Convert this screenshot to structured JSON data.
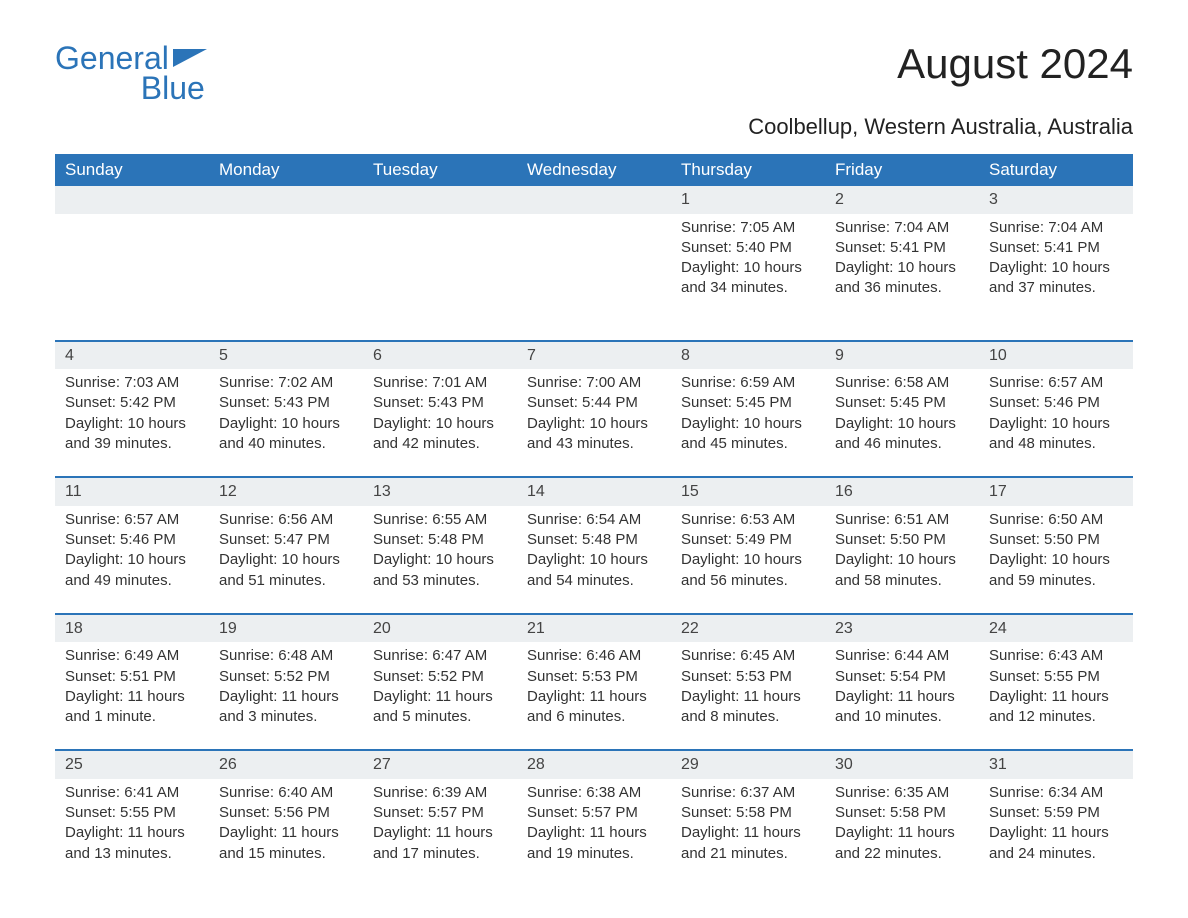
{
  "brand": {
    "text1": "General",
    "text2": "Blue",
    "accent_color": "#2b74b8"
  },
  "title": "August 2024",
  "subtitle": "Coolbellup, Western Australia, Australia",
  "day_headers": [
    "Sunday",
    "Monday",
    "Tuesday",
    "Wednesday",
    "Thursday",
    "Friday",
    "Saturday"
  ],
  "colors": {
    "header_bg": "#2b74b8",
    "header_text": "#ffffff",
    "daynum_bg": "#eceff1",
    "row_border": "#2b74b8",
    "text": "#333333"
  },
  "weeks": [
    [
      {
        "n": "",
        "sr": "",
        "ss": "",
        "d1": "",
        "d2": ""
      },
      {
        "n": "",
        "sr": "",
        "ss": "",
        "d1": "",
        "d2": ""
      },
      {
        "n": "",
        "sr": "",
        "ss": "",
        "d1": "",
        "d2": ""
      },
      {
        "n": "",
        "sr": "",
        "ss": "",
        "d1": "",
        "d2": ""
      },
      {
        "n": "1",
        "sr": "Sunrise: 7:05 AM",
        "ss": "Sunset: 5:40 PM",
        "d1": "Daylight: 10 hours",
        "d2": "and 34 minutes."
      },
      {
        "n": "2",
        "sr": "Sunrise: 7:04 AM",
        "ss": "Sunset: 5:41 PM",
        "d1": "Daylight: 10 hours",
        "d2": "and 36 minutes."
      },
      {
        "n": "3",
        "sr": "Sunrise: 7:04 AM",
        "ss": "Sunset: 5:41 PM",
        "d1": "Daylight: 10 hours",
        "d2": "and 37 minutes."
      }
    ],
    [
      {
        "n": "4",
        "sr": "Sunrise: 7:03 AM",
        "ss": "Sunset: 5:42 PM",
        "d1": "Daylight: 10 hours",
        "d2": "and 39 minutes."
      },
      {
        "n": "5",
        "sr": "Sunrise: 7:02 AM",
        "ss": "Sunset: 5:43 PM",
        "d1": "Daylight: 10 hours",
        "d2": "and 40 minutes."
      },
      {
        "n": "6",
        "sr": "Sunrise: 7:01 AM",
        "ss": "Sunset: 5:43 PM",
        "d1": "Daylight: 10 hours",
        "d2": "and 42 minutes."
      },
      {
        "n": "7",
        "sr": "Sunrise: 7:00 AM",
        "ss": "Sunset: 5:44 PM",
        "d1": "Daylight: 10 hours",
        "d2": "and 43 minutes."
      },
      {
        "n": "8",
        "sr": "Sunrise: 6:59 AM",
        "ss": "Sunset: 5:45 PM",
        "d1": "Daylight: 10 hours",
        "d2": "and 45 minutes."
      },
      {
        "n": "9",
        "sr": "Sunrise: 6:58 AM",
        "ss": "Sunset: 5:45 PM",
        "d1": "Daylight: 10 hours",
        "d2": "and 46 minutes."
      },
      {
        "n": "10",
        "sr": "Sunrise: 6:57 AM",
        "ss": "Sunset: 5:46 PM",
        "d1": "Daylight: 10 hours",
        "d2": "and 48 minutes."
      }
    ],
    [
      {
        "n": "11",
        "sr": "Sunrise: 6:57 AM",
        "ss": "Sunset: 5:46 PM",
        "d1": "Daylight: 10 hours",
        "d2": "and 49 minutes."
      },
      {
        "n": "12",
        "sr": "Sunrise: 6:56 AM",
        "ss": "Sunset: 5:47 PM",
        "d1": "Daylight: 10 hours",
        "d2": "and 51 minutes."
      },
      {
        "n": "13",
        "sr": "Sunrise: 6:55 AM",
        "ss": "Sunset: 5:48 PM",
        "d1": "Daylight: 10 hours",
        "d2": "and 53 minutes."
      },
      {
        "n": "14",
        "sr": "Sunrise: 6:54 AM",
        "ss": "Sunset: 5:48 PM",
        "d1": "Daylight: 10 hours",
        "d2": "and 54 minutes."
      },
      {
        "n": "15",
        "sr": "Sunrise: 6:53 AM",
        "ss": "Sunset: 5:49 PM",
        "d1": "Daylight: 10 hours",
        "d2": "and 56 minutes."
      },
      {
        "n": "16",
        "sr": "Sunrise: 6:51 AM",
        "ss": "Sunset: 5:50 PM",
        "d1": "Daylight: 10 hours",
        "d2": "and 58 minutes."
      },
      {
        "n": "17",
        "sr": "Sunrise: 6:50 AM",
        "ss": "Sunset: 5:50 PM",
        "d1": "Daylight: 10 hours",
        "d2": "and 59 minutes."
      }
    ],
    [
      {
        "n": "18",
        "sr": "Sunrise: 6:49 AM",
        "ss": "Sunset: 5:51 PM",
        "d1": "Daylight: 11 hours",
        "d2": "and 1 minute."
      },
      {
        "n": "19",
        "sr": "Sunrise: 6:48 AM",
        "ss": "Sunset: 5:52 PM",
        "d1": "Daylight: 11 hours",
        "d2": "and 3 minutes."
      },
      {
        "n": "20",
        "sr": "Sunrise: 6:47 AM",
        "ss": "Sunset: 5:52 PM",
        "d1": "Daylight: 11 hours",
        "d2": "and 5 minutes."
      },
      {
        "n": "21",
        "sr": "Sunrise: 6:46 AM",
        "ss": "Sunset: 5:53 PM",
        "d1": "Daylight: 11 hours",
        "d2": "and 6 minutes."
      },
      {
        "n": "22",
        "sr": "Sunrise: 6:45 AM",
        "ss": "Sunset: 5:53 PM",
        "d1": "Daylight: 11 hours",
        "d2": "and 8 minutes."
      },
      {
        "n": "23",
        "sr": "Sunrise: 6:44 AM",
        "ss": "Sunset: 5:54 PM",
        "d1": "Daylight: 11 hours",
        "d2": "and 10 minutes."
      },
      {
        "n": "24",
        "sr": "Sunrise: 6:43 AM",
        "ss": "Sunset: 5:55 PM",
        "d1": "Daylight: 11 hours",
        "d2": "and 12 minutes."
      }
    ],
    [
      {
        "n": "25",
        "sr": "Sunrise: 6:41 AM",
        "ss": "Sunset: 5:55 PM",
        "d1": "Daylight: 11 hours",
        "d2": "and 13 minutes."
      },
      {
        "n": "26",
        "sr": "Sunrise: 6:40 AM",
        "ss": "Sunset: 5:56 PM",
        "d1": "Daylight: 11 hours",
        "d2": "and 15 minutes."
      },
      {
        "n": "27",
        "sr": "Sunrise: 6:39 AM",
        "ss": "Sunset: 5:57 PM",
        "d1": "Daylight: 11 hours",
        "d2": "and 17 minutes."
      },
      {
        "n": "28",
        "sr": "Sunrise: 6:38 AM",
        "ss": "Sunset: 5:57 PM",
        "d1": "Daylight: 11 hours",
        "d2": "and 19 minutes."
      },
      {
        "n": "29",
        "sr": "Sunrise: 6:37 AM",
        "ss": "Sunset: 5:58 PM",
        "d1": "Daylight: 11 hours",
        "d2": "and 21 minutes."
      },
      {
        "n": "30",
        "sr": "Sunrise: 6:35 AM",
        "ss": "Sunset: 5:58 PM",
        "d1": "Daylight: 11 hours",
        "d2": "and 22 minutes."
      },
      {
        "n": "31",
        "sr": "Sunrise: 6:34 AM",
        "ss": "Sunset: 5:59 PM",
        "d1": "Daylight: 11 hours",
        "d2": "and 24 minutes."
      }
    ]
  ]
}
